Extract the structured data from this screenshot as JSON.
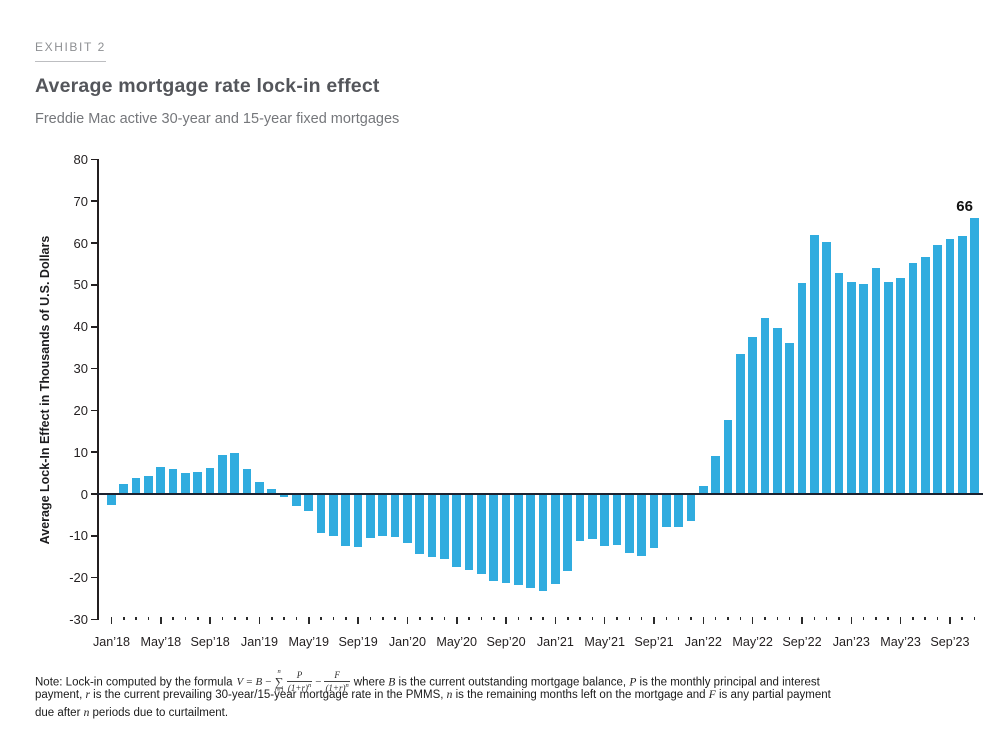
{
  "header": {
    "exhibit_label": "EXHIBIT 2",
    "title": "Average mortgage rate lock-in effect",
    "subtitle": "Freddie Mac active 30-year and 15-year fixed mortgages"
  },
  "chart_data": {
    "type": "bar",
    "title": "Average mortgage rate lock-in effect",
    "subtitle": "Freddie Mac active 30-year and 15-year fixed mortgages",
    "xlabel": "",
    "ylabel": "Average Lock-In Effect in Thousands of U.S. Dollars",
    "ylim": [
      -30,
      80
    ],
    "yticks": [
      80,
      70,
      60,
      50,
      40,
      30,
      20,
      10,
      0,
      -10,
      -20,
      -30
    ],
    "grid": false,
    "legend": "none",
    "bar_color": "#30ACDF",
    "xtick_label_every": 4,
    "categories": [
      "Jan’18",
      "Feb’18",
      "Mar’18",
      "Apr’18",
      "May’18",
      "Jun’18",
      "Jul’18",
      "Aug’18",
      "Sep’18",
      "Oct’18",
      "Nov’18",
      "Dec’18",
      "Jan’19",
      "Feb’19",
      "Mar’19",
      "Apr’19",
      "May’19",
      "Jun’19",
      "Jul’19",
      "Aug’19",
      "Sep’19",
      "Oct’19",
      "Nov’19",
      "Dec’19",
      "Jan’20",
      "Feb’20",
      "Mar’20",
      "Apr’20",
      "May’20",
      "Jun’20",
      "Jul’20",
      "Aug’20",
      "Sep’20",
      "Oct’20",
      "Nov’20",
      "Dec’20",
      "Jan’21",
      "Feb’21",
      "Mar’21",
      "Apr’21",
      "May’21",
      "Jun’21",
      "Jul’21",
      "Aug’21",
      "Sep’21",
      "Oct’21",
      "Nov’21",
      "Dec’21",
      "Jan’22",
      "Feb’22",
      "Mar’22",
      "Apr’22",
      "May’22",
      "Jun’22",
      "Jul’22",
      "Aug’22",
      "Sep’22",
      "Oct’22",
      "Nov’22",
      "Dec’22",
      "Jan’23",
      "Feb’23",
      "Mar’23",
      "Apr’23",
      "May’23",
      "Jun’23",
      "Jul’23",
      "Aug’23",
      "Sep’23",
      "Oct’23",
      "Nov’23"
    ],
    "values": [
      -2.7,
      2.3,
      3.8,
      4.4,
      6.4,
      5.9,
      5.0,
      5.2,
      6.3,
      9.3,
      9.7,
      5.9,
      2.8,
      1.1,
      -0.8,
      -2.9,
      -4.1,
      -9.4,
      -10.0,
      -12.4,
      -12.6,
      -10.6,
      -10.0,
      -10.3,
      -11.6,
      -14.4,
      -15.0,
      -15.6,
      -17.4,
      -18.2,
      -19.1,
      -20.7,
      -21.3,
      -21.7,
      -22.4,
      -23.3,
      -21.5,
      -18.5,
      -11.3,
      -10.7,
      -12.5,
      -12.1,
      -14.2,
      -14.9,
      -13.0,
      -7.9,
      -7.8,
      -6.5,
      2.0,
      9.0,
      17.8,
      33.5,
      37.5,
      42.0,
      39.8,
      36.0,
      50.5,
      62.0,
      60.2,
      52.8,
      50.7,
      50.1,
      54.0,
      50.7,
      51.7,
      55.3,
      56.7,
      59.5,
      61.0,
      61.6,
      66.0
    ],
    "annotation": {
      "text": "66",
      "category": "Nov’23",
      "month_index": 70
    }
  },
  "note": {
    "line1_pre": "Note: Lock-in computed by the formula",
    "formula": {
      "v": "V",
      "eq": "=",
      "b": "B",
      "minus": "−",
      "sum": "∑",
      "sum_top": "n",
      "sum_bot": "i=1",
      "f1n": "P",
      "f1d": "(1+r)",
      "f2n": "F",
      "f2d": "(1+r)",
      "exp": "n"
    },
    "line1_post": [
      {
        "t": "where "
      },
      {
        "t": "B",
        "i": 1
      },
      {
        "t": " is the current outstanding mortgage balance, "
      },
      {
        "t": "P",
        "i": 1
      },
      {
        "t": " is the monthly principal and interest"
      }
    ],
    "line2": [
      {
        "t": "payment, "
      },
      {
        "t": "r",
        "i": 1
      },
      {
        "t": " is the current prevailing 30-year/15-year mortgage rate in the PMMS, "
      },
      {
        "t": "n",
        "i": 1
      },
      {
        "t": " is the remaining months left on the mortgage and "
      },
      {
        "t": "F",
        "i": 1
      },
      {
        "t": " is any partial payment"
      }
    ],
    "line3": [
      {
        "t": "due after "
      },
      {
        "t": "n",
        "i": 1
      },
      {
        "t": " periods due to curtailment."
      }
    ]
  }
}
